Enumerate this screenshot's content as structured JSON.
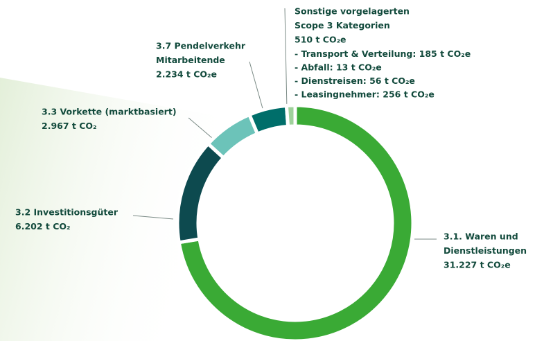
{
  "chart_data": {
    "type": "donut",
    "categories": [
      [
        "3.1. Waren und",
        "Dienstleistungen"
      ],
      [
        "3.2 Investitionsgüter"
      ],
      [
        "3.3 Vorkette (marktbasiert)"
      ],
      [
        "3.7 Pendelverkehr",
        "Mitarbeitende"
      ],
      [
        "Sonstige vorgelagerten",
        "Scope 3 Kategorien"
      ]
    ],
    "values": [
      31227,
      6202,
      2967,
      2234,
      510
    ],
    "value_labels": [
      "31.227 t CO₂e",
      "6.202 t CO₂",
      "2.967 t CO₂",
      "2.234 t CO₂e",
      "510 t CO₂e"
    ],
    "colors": [
      "#3aaa35",
      "#0d4a4f",
      "#6cc3b9",
      "#006e6a",
      "#9fd19b"
    ],
    "details": [
      "- Transport & Verteilung: 185 t CO₂e",
      "- Abfall: 13 t CO₂e",
      "- Dienstreisen: 56 t CO₂e",
      "- Leasingnehmer: 256 t CO₂e"
    ]
  }
}
